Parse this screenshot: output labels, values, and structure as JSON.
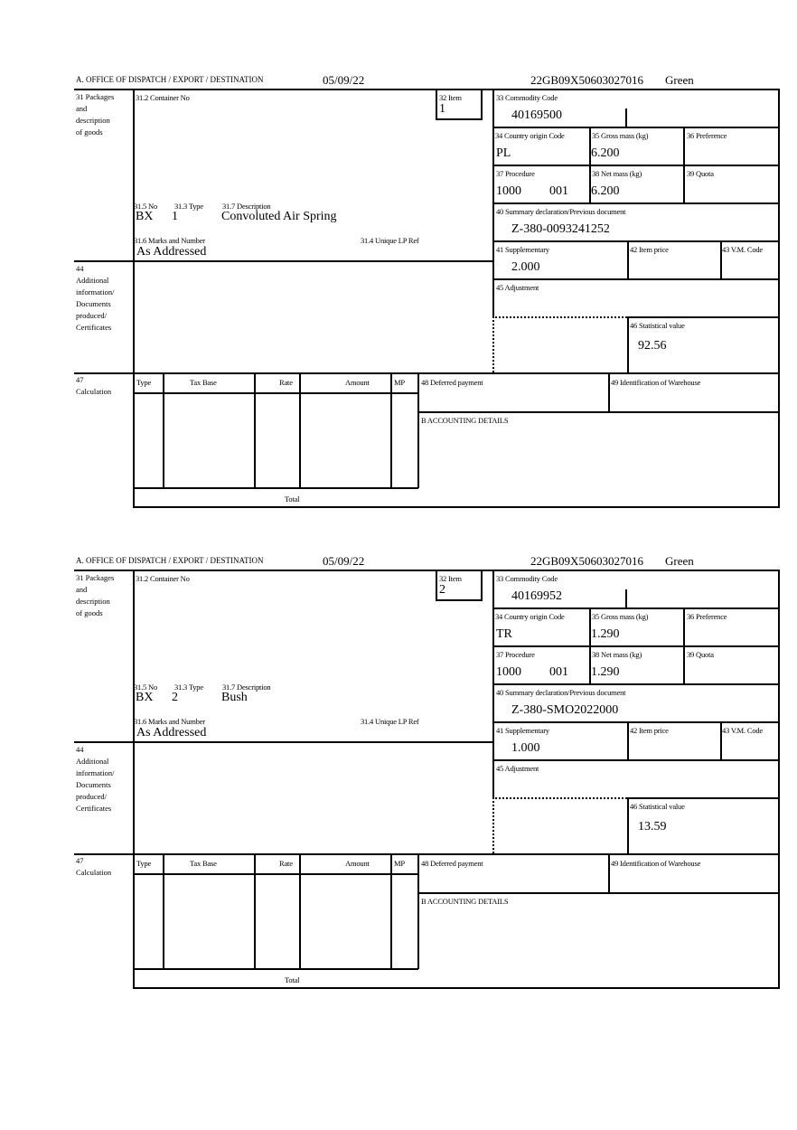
{
  "labels": {
    "office": "A.  OFFICE OF DISPATCH / EXPORT / DESTINATION",
    "box31": "31 Packages\nand\ndescription\nof goods",
    "container_no": "31.2 Container No",
    "item": "32 Item",
    "no": "31.5 No",
    "type": "31.3 Type",
    "description": "31.7 Description",
    "marks": "31.6 Marks and Number",
    "unique_lp_ref": "31.4 Unique LP Ref",
    "commodity_code": "33 Commodity Code",
    "country_origin": "34 Country origin Code",
    "gross_mass": "35 Gross mass (kg)",
    "preference": "36 Preference",
    "procedure": "37 Procedure",
    "net_mass": "38 Net mass (kg)",
    "quota": "39 Quota",
    "summary_declaration": "40 Summary declaration/Previous document",
    "supplementary": "41 Supplementary",
    "item_price": "42 Item price",
    "vm_code": "43 V.M. Code",
    "box44": "44\nAdditional\ninformation/\nDocuments\nproduced/\nCertificates",
    "adjustment": "45 Adjustment",
    "statistical_value": "46 Statistical value",
    "calculation": "47\nCalculation",
    "calc_type": "Type",
    "calc_tax_base": "Tax Base",
    "calc_rate": "Rate",
    "calc_amount": "Amount",
    "calc_mp": "MP",
    "total": "Total",
    "deferred_payment": "48 Deferred payment",
    "warehouse": "49 Identification of Warehouse",
    "accounting": "B ACCOUNTING DETAILS"
  },
  "items": [
    {
      "date": "05/09/22",
      "reference": "22GB09X50603027016",
      "route": "Green",
      "item_no": "1",
      "packages_no": "BX",
      "packages_type": "1",
      "description": "Convoluted Air Spring",
      "marks": "As Addressed",
      "commodity_code": "40169500",
      "country_origin": "PL",
      "gross_mass": "6.200",
      "procedure": "1000",
      "procedure_additional": "001",
      "net_mass": "6.200",
      "previous_document": "Z-380-0093241252",
      "supplementary": "2.000",
      "statistical_value": "92.56"
    },
    {
      "date": "05/09/22",
      "reference": "22GB09X50603027016",
      "route": "Green",
      "item_no": "2",
      "packages_no": "BX",
      "packages_type": "2",
      "description": "Bush",
      "marks": "As Addressed",
      "commodity_code": "40169952",
      "country_origin": "TR",
      "gross_mass": "1.290",
      "procedure": "1000",
      "procedure_additional": "001",
      "net_mass": "1.290",
      "previous_document": "Z-380-SMO2022000",
      "supplementary": "1.000",
      "statistical_value": "13.59"
    }
  ]
}
